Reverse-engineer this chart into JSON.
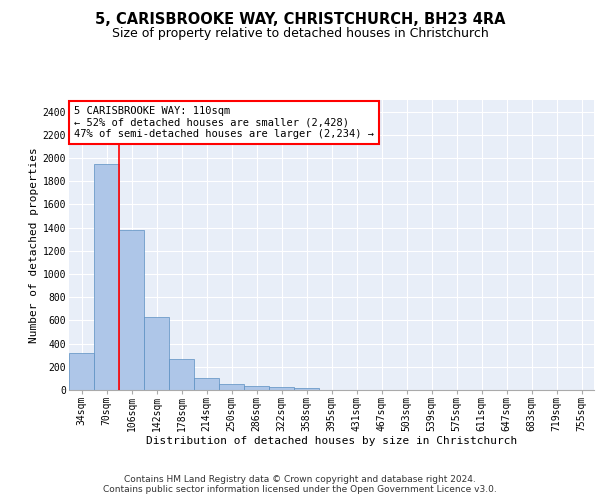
{
  "title": "5, CARISBROOKE WAY, CHRISTCHURCH, BH23 4RA",
  "subtitle": "Size of property relative to detached houses in Christchurch",
  "xlabel": "Distribution of detached houses by size in Christchurch",
  "ylabel": "Number of detached properties",
  "categories": [
    "34sqm",
    "70sqm",
    "106sqm",
    "142sqm",
    "178sqm",
    "214sqm",
    "250sqm",
    "286sqm",
    "322sqm",
    "358sqm",
    "395sqm",
    "431sqm",
    "467sqm",
    "503sqm",
    "539sqm",
    "575sqm",
    "611sqm",
    "647sqm",
    "683sqm",
    "719sqm",
    "755sqm"
  ],
  "values": [
    315,
    1950,
    1380,
    630,
    270,
    100,
    48,
    32,
    28,
    20,
    0,
    0,
    0,
    0,
    0,
    0,
    0,
    0,
    0,
    0,
    0
  ],
  "bar_color": "#aec6e8",
  "bar_edgecolor": "#5a8fc2",
  "background_color": "#e8eef8",
  "annotation_text": "5 CARISBROOKE WAY: 110sqm\n← 52% of detached houses are smaller (2,428)\n47% of semi-detached houses are larger (2,234) →",
  "annotation_box_color": "red",
  "ylim": [
    0,
    2500
  ],
  "yticks": [
    0,
    200,
    400,
    600,
    800,
    1000,
    1200,
    1400,
    1600,
    1800,
    2000,
    2200,
    2400
  ],
  "footer_line1": "Contains HM Land Registry data © Crown copyright and database right 2024.",
  "footer_line2": "Contains public sector information licensed under the Open Government Licence v3.0.",
  "title_fontsize": 10.5,
  "subtitle_fontsize": 9,
  "annotation_fontsize": 7.5,
  "axis_label_fontsize": 8,
  "tick_fontsize": 7,
  "footer_fontsize": 6.5
}
